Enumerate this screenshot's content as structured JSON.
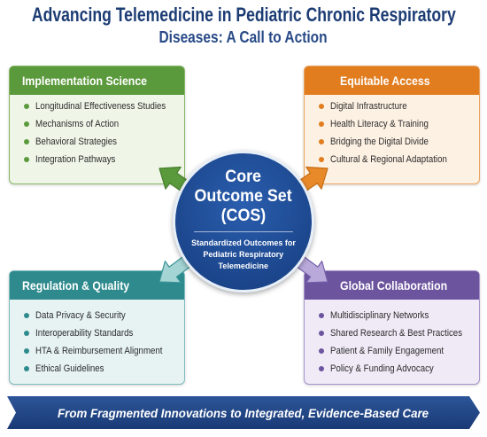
{
  "title": {
    "line1": "Advancing Telemedicine in Pediatric Chronic Respiratory",
    "line2": "Diseases: A Call to Action"
  },
  "hub": {
    "lines": [
      "Core",
      "Outcome Set",
      "(COS)"
    ],
    "sub": [
      "Standardized Outcomes for",
      "Pediatric Respiratory",
      "Telemedicine"
    ]
  },
  "pillars": [
    {
      "title": "Implementation Science",
      "items": [
        "Longitudinal Effectiveness Studies",
        "Mechanisms of Action",
        "Behavioral Strategies",
        "Integration Pathways"
      ],
      "color": "#5b9a3c",
      "body": "#eff6e8",
      "border": "#86b863",
      "arrow_fill": "#5b9a3c",
      "arrow_stroke": "#467d2b"
    },
    {
      "title": "Equitable Access",
      "items": [
        "Digital Infrastructure",
        "Health Literacy & Training",
        "Bridging the Digital Divide",
        "Cultural & Regional Adaptation"
      ],
      "color": "#e27d1f",
      "body": "#fdf1e3",
      "border": "#eba45f",
      "arrow_fill": "#e8892a",
      "arrow_stroke": "#c46c14"
    },
    {
      "title": "Regulation & Quality",
      "items": [
        "Data Privacy & Security",
        "Interoperability Standards",
        "HTA & Reimbursement Alignment",
        "Ethical Guidelines"
      ],
      "color": "#2e8a8d",
      "body": "#e7f3f3",
      "border": "#7fbcbe",
      "arrow_fill": "#a4d4d4",
      "arrow_stroke": "#3a9497"
    },
    {
      "title": "Global Collaboration",
      "items": [
        "Multidisciplinary Networks",
        "Shared Research & Best Practices",
        "Patient & Family Engagement",
        "Policy & Funding Advocacy"
      ],
      "color": "#6c549e",
      "body": "#f0eaf7",
      "border": "#a794cb",
      "arrow_fill": "#b9a9db",
      "arrow_stroke": "#7560ab"
    }
  ],
  "banner": {
    "text": "From Fragmented Innovations to Integrated, Evidence-Based Care"
  },
  "colors": {
    "title": "#1c3c74",
    "subtitle": "#284a87",
    "hub_inner": "#2a5eae",
    "hub_outer": "#163c7e",
    "banner_light": "#2c5598",
    "banner_dark": "#1a3a76",
    "item_text": "#2b2b2b"
  }
}
